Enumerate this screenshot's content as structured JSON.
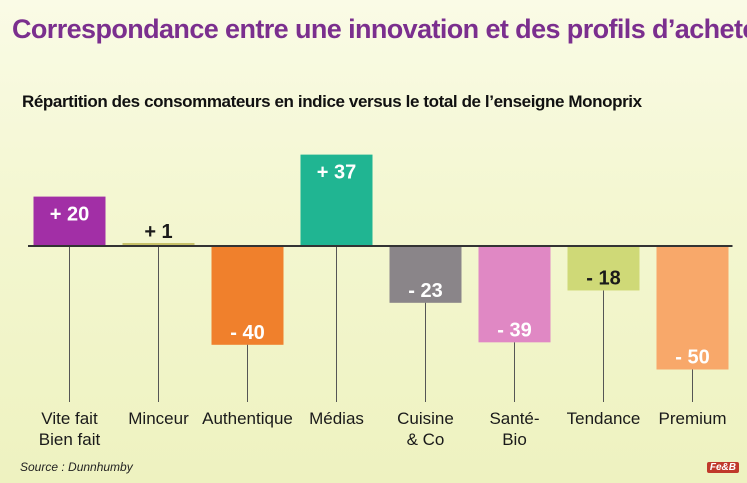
{
  "header": {
    "title": "Correspondance entre une innovation et des profils d’acheteurs",
    "subtitle": "Répartition des consommateurs en indice versus le total de l’enseigne Monoprix"
  },
  "footer": {
    "source": "Source : Dunnhumby",
    "logo_text": "Fe&B"
  },
  "chart_data": {
    "type": "bar",
    "title": "Répartition des consommateurs en indice versus le total de l’enseigne Monoprix",
    "categories": [
      "Vite fait\nBien fait",
      "Minceur",
      "Authentique",
      "Médias",
      "Cuisine\n& Co",
      "Santé-\nBio",
      "Tendance",
      "Premium"
    ],
    "values": [
      20,
      1,
      -40,
      37,
      -23,
      -39,
      -18,
      -50
    ],
    "value_labels": [
      "+ 20",
      "+ 1",
      "- 40",
      "+ 37",
      "- 23",
      "- 39",
      "- 18",
      "- 50"
    ],
    "colors": [
      "#a22fa6",
      "#c8c26a",
      "#f0802c",
      "#20b592",
      "#8a8589",
      "#e088c4",
      "#cfd977",
      "#f8a86a"
    ],
    "ylim": [
      -50,
      37
    ],
    "grid": false,
    "legend": "none"
  }
}
